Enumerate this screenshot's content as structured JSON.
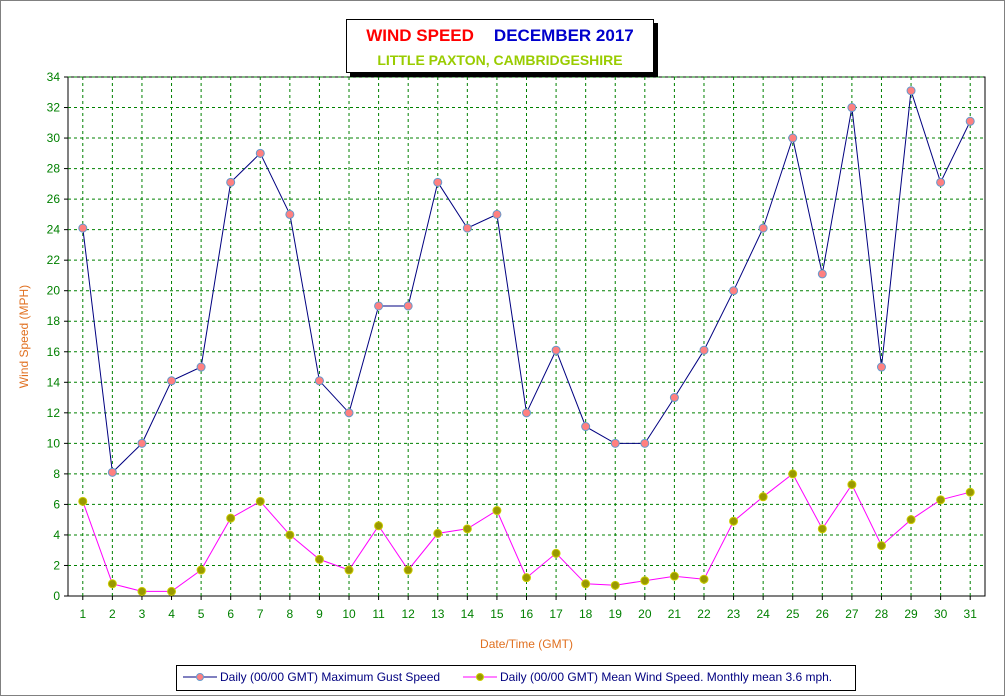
{
  "title": {
    "part1": "WIND SPEED",
    "part2": "DECEMBER 2017",
    "subtitle": "LITTLE PAXTON, CAMBRIDGESHIRE"
  },
  "colors": {
    "title_red": "#ff0000",
    "title_blue": "#0000cc",
    "subtitle_green": "#99cc00",
    "axis_label": "#e07020",
    "tick_label": "#008000",
    "gust_line": "#000080",
    "gust_marker": "#ff8080",
    "gust_marker_edge": "#6699cc",
    "mean_line": "#ff00ff",
    "mean_marker": "#999900",
    "mean_marker_edge": "#cccc00",
    "grid": "#008000"
  },
  "chart_data": {
    "type": "line",
    "xlabel": "Date/Time (GMT)",
    "ylabel": "Wind Speed (MPH)",
    "ylim": [
      0,
      34
    ],
    "yticks": [
      0,
      2,
      4,
      6,
      8,
      10,
      12,
      14,
      16,
      18,
      20,
      22,
      24,
      26,
      28,
      30,
      32,
      34
    ],
    "grid": true,
    "legend_position": "bottom",
    "categories": [
      "1",
      "2",
      "3",
      "4",
      "5",
      "6",
      "7",
      "8",
      "9",
      "10",
      "11",
      "12",
      "13",
      "14",
      "15",
      "16",
      "17",
      "18",
      "19",
      "20",
      "21",
      "22",
      "23",
      "24",
      "25",
      "26",
      "27",
      "28",
      "29",
      "30",
      "31"
    ],
    "series": [
      {
        "name": "Daily (00/00 GMT) Maximum Gust Speed",
        "values": [
          24.1,
          8.1,
          10.0,
          14.1,
          15.0,
          27.1,
          29.0,
          25.0,
          14.1,
          12.0,
          19.0,
          19.0,
          27.1,
          24.1,
          25.0,
          12.0,
          16.1,
          11.1,
          10.0,
          10.0,
          13.0,
          16.1,
          20.0,
          24.1,
          30.0,
          21.1,
          32.0,
          15.0,
          33.1,
          27.1,
          31.1
        ]
      },
      {
        "name": "Daily (00/00 GMT) Mean Wind Speed. Monthly mean 3.6 mph.",
        "values": [
          6.2,
          0.8,
          0.3,
          0.3,
          1.7,
          5.1,
          6.2,
          4.0,
          2.4,
          1.7,
          4.6,
          1.7,
          4.1,
          4.4,
          5.6,
          1.2,
          2.8,
          0.8,
          0.7,
          1.0,
          1.3,
          1.1,
          4.9,
          6.5,
          8.0,
          4.4,
          7.3,
          3.3,
          5.0,
          6.3,
          6.8
        ]
      }
    ]
  }
}
